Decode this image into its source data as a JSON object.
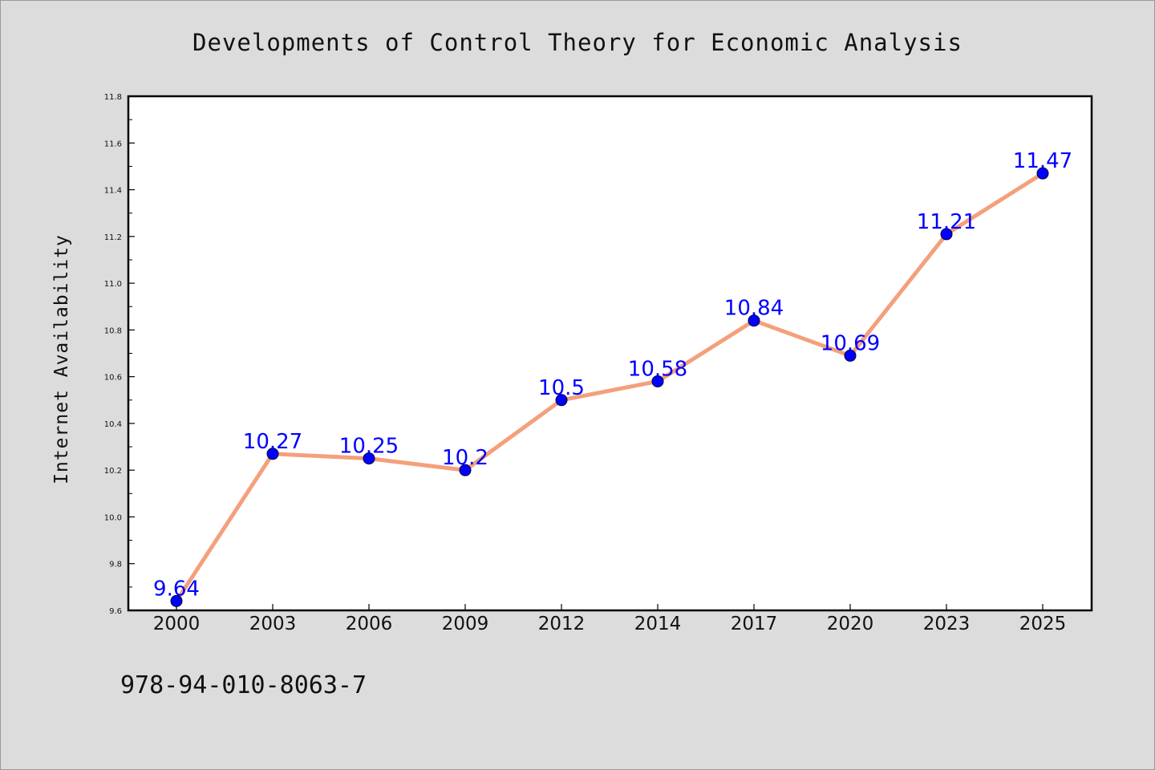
{
  "footer": {
    "code": "978-94-010-8063-7"
  },
  "chart_data": {
    "type": "line",
    "title": "Developments of Control Theory for Economic Analysis",
    "xlabel": "",
    "ylabel": "Internet Availability",
    "categories": [
      "2000",
      "2003",
      "2006",
      "2009",
      "2012",
      "2014",
      "2017",
      "2020",
      "2023",
      "2025"
    ],
    "series": [
      {
        "values": [
          9.64,
          10.27,
          10.25,
          10.2,
          10.5,
          10.58,
          10.84,
          10.69,
          11.21,
          11.47
        ],
        "data_labels": [
          "9.64",
          "10.27",
          "10.25",
          "10.2",
          "10.5",
          "10.58",
          "10.84",
          "10.69",
          "11.21",
          "11.47"
        ],
        "line_color": "#f4a07c",
        "marker_color": "#0000ff"
      }
    ],
    "ylim": [
      9.6,
      11.8
    ],
    "yticks": [
      "9.6",
      "9.8",
      "10.0",
      "10.2",
      "10.4",
      "10.6",
      "10.8",
      "11.0",
      "11.2",
      "11.4",
      "11.6",
      "11.8"
    ],
    "grid": false,
    "legend": "none",
    "background_color": "#dcdcdc",
    "plot_background_color": "#ffffff"
  }
}
